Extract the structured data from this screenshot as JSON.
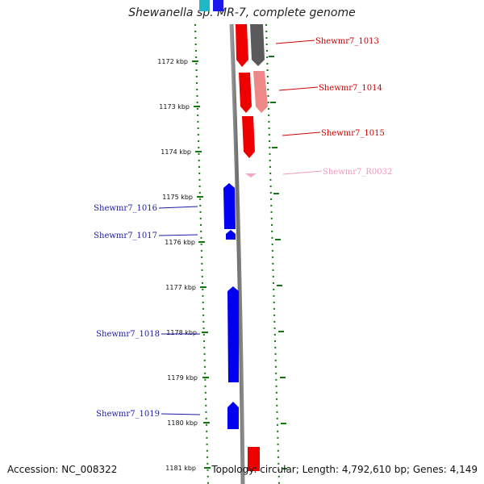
{
  "title": "Shewanella sp. MR-7, complete genome",
  "ticks": [
    {
      "label": "1172 kbp",
      "kbp": 1172
    },
    {
      "label": "1173 kbp",
      "kbp": 1173
    },
    {
      "label": "1174 kbp",
      "kbp": 1174
    },
    {
      "label": "1175 kbp",
      "kbp": 1175
    },
    {
      "label": "1176 kbp",
      "kbp": 1176
    },
    {
      "label": "1177 kbp",
      "kbp": 1177
    },
    {
      "label": "1178 kbp",
      "kbp": 1178
    },
    {
      "label": "1179 kbp",
      "kbp": 1179
    },
    {
      "label": "1180 kbp",
      "kbp": 1180
    },
    {
      "label": "1181 kbp",
      "kbp": 1181
    }
  ],
  "genes": [
    {
      "name": "Shewmr7_1013",
      "strand": "forward",
      "color": "#555555",
      "label_color": "#cc0000"
    },
    {
      "name": "Shewmr7_1014",
      "strand": "forward",
      "color": "#ee8888",
      "label_color": "#cc0000"
    },
    {
      "name": "Shewmr7_1015",
      "strand": "forward",
      "color": "#ee0000",
      "label_color": "#cc0000"
    },
    {
      "name": "Shewmr7_R0032",
      "strand": "forward",
      "color": "#f4a6c8",
      "label_color": "#ee99bb"
    },
    {
      "name": "Shewmr7_1016",
      "strand": "reverse",
      "color": "#0000ee",
      "label_color": "#1a1aaa"
    },
    {
      "name": "Shewmr7_1017",
      "strand": "reverse",
      "color": "#0000ee",
      "label_color": "#1a1aaa"
    },
    {
      "name": "Shewmr7_1018",
      "strand": "reverse",
      "color": "#0000ee",
      "label_color": "#1a1aaa"
    },
    {
      "name": "Shewmr7_1019",
      "strand": "reverse",
      "color": "#0000ee",
      "label_color": "#1a1aaa"
    }
  ],
  "colors": {
    "backbone": "#808080",
    "tick": "#117711",
    "forward_gene": "#ee0000",
    "reverse_gene": "#0000ee"
  },
  "footer": {
    "accession": "Accession: NC_008322",
    "topology": "Topology: circular;",
    "length": "Length: 4,792,610 bp;",
    "genes": "Genes: 4,149"
  }
}
